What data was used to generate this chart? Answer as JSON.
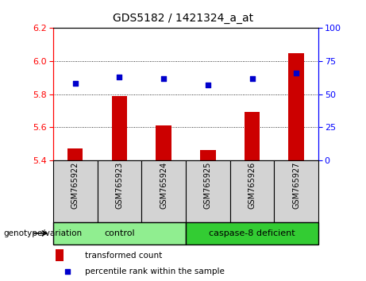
{
  "title": "GDS5182 / 1421324_a_at",
  "categories": [
    "GSM765922",
    "GSM765923",
    "GSM765924",
    "GSM765925",
    "GSM765926",
    "GSM765927"
  ],
  "bar_values": [
    5.47,
    5.79,
    5.61,
    5.46,
    5.69,
    6.05
  ],
  "scatter_values": [
    58,
    63,
    62,
    57,
    62,
    66
  ],
  "bar_color": "#cc0000",
  "scatter_color": "#0000cc",
  "ylim_left": [
    5.4,
    6.2
  ],
  "ylim_right": [
    0,
    100
  ],
  "yticks_left": [
    5.4,
    5.6,
    5.8,
    6.0,
    6.2
  ],
  "yticks_right": [
    0,
    25,
    50,
    75,
    100
  ],
  "grid_values": [
    5.6,
    5.8,
    6.0
  ],
  "control_label": "control",
  "deficient_label": "caspase-8 deficient",
  "genotype_label": "genotype/variation",
  "legend_bar": "transformed count",
  "legend_scatter": "percentile rank within the sample",
  "control_color": "#90EE90",
  "deficient_color": "#33cc33",
  "sample_bg_color": "#d3d3d3",
  "bar_base": 5.4,
  "bar_width": 0.35
}
